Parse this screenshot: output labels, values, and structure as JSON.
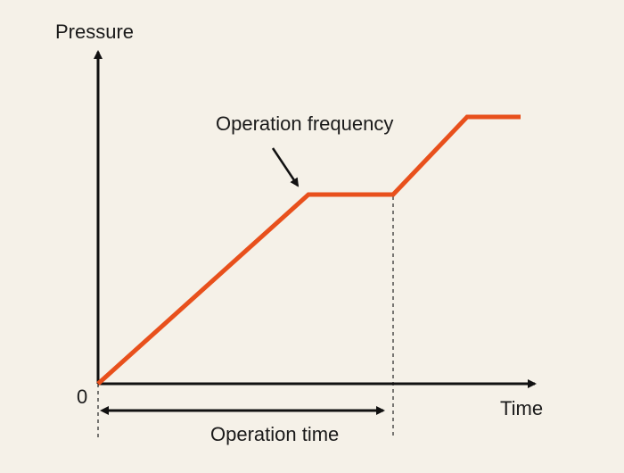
{
  "diagram": {
    "y_axis_label": "Pressure",
    "x_axis_label": "Time",
    "origin_label": "0",
    "annotation_label": "Operation frequency",
    "span_label": "Operation time",
    "colors": {
      "background": "#f5f1e8",
      "curve": "#e8501c",
      "axes": "#111111",
      "dashed_guides": "#333333"
    }
  }
}
